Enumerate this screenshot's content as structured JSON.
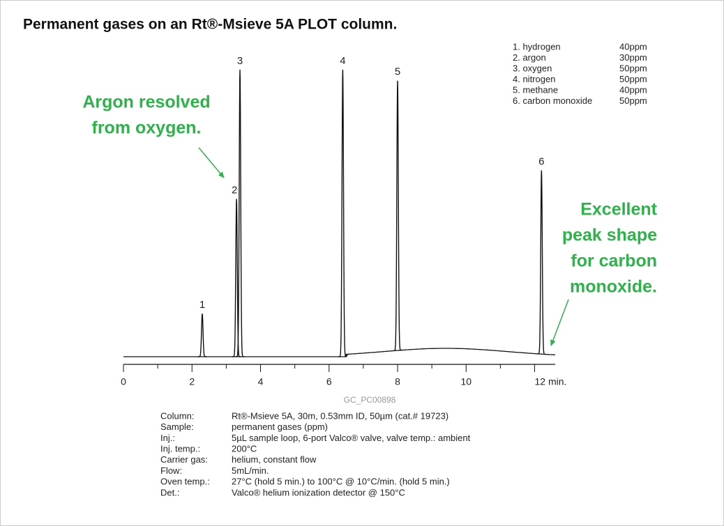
{
  "chart_data": {
    "type": "chromatogram",
    "title": "Permanent gases on an Rt®-Msieve 5A PLOT column.",
    "categories": [
      "1",
      "2",
      "3",
      "4",
      "5",
      "6"
    ],
    "x": [
      2.3,
      3.3,
      3.4,
      6.4,
      8.0,
      12.2
    ],
    "values": [
      15,
      55,
      100,
      100,
      94,
      64
    ],
    "color": "#111111",
    "xlim": [
      0,
      12.6
    ],
    "xticks": [
      0,
      2,
      4,
      6,
      8,
      10,
      {
        "value": 12,
        "label": "12 min."
      }
    ],
    "xminorticks": [
      1,
      3,
      5,
      7,
      9,
      11
    ],
    "ylim": [
      0,
      100
    ]
  },
  "legend": [
    [
      "1. hydrogen",
      "40ppm"
    ],
    [
      "2. argon",
      "30ppm"
    ],
    [
      "3. oxygen",
      "50ppm"
    ],
    [
      "4. nitrogen",
      "50ppm"
    ],
    [
      "5. methane",
      "40ppm"
    ],
    [
      "6. carbon monoxide",
      "50ppm"
    ]
  ],
  "annotations": [
    {
      "lines": [
        "Argon resolved",
        "from oxygen."
      ]
    },
    {
      "lines": [
        "Excellent",
        "peak shape",
        "for carbon",
        "monoxide."
      ]
    }
  ],
  "figure_id": "GC_PC00898",
  "conditions": [
    [
      "Column:",
      "Rt®-Msieve 5A, 30m, 0.53mm ID, 50µm (cat.# 19723)"
    ],
    [
      "Sample:",
      "permanent gases (ppm)"
    ],
    [
      "Inj.:",
      "5µL sample loop, 6-port Valco® valve, valve temp.: ambient"
    ],
    [
      "Inj. temp.:",
      "200°C"
    ],
    [
      "Carrier gas:",
      "helium, constant flow"
    ],
    [
      "Flow:",
      "5mL/min."
    ],
    [
      "Oven temp.:",
      "27°C (hold 5 min.) to 100°C @ 10°C/min. (hold 5 min.)"
    ],
    [
      "Det.:",
      "Valco® helium ionization detector @ 150°C"
    ]
  ]
}
